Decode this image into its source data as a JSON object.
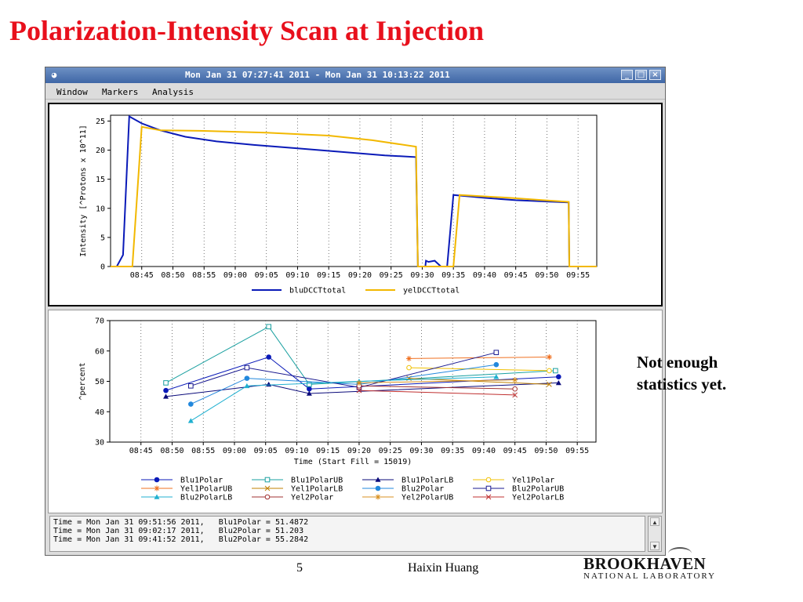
{
  "slide": {
    "title": "Polarization-Intensity Scan at Injection",
    "note_line1": "Not enough",
    "note_line2": "statistics yet.",
    "page_number": "5",
    "author": "Haixin Huang",
    "logo_line1": "BROOKHAVEN",
    "logo_line2": "NATIONAL LABORATORY"
  },
  "window": {
    "title": "Mon Jan 31 07:27:41 2011 - Mon Jan 31 10:13:22 2011",
    "menu": [
      "Window",
      "Markers",
      "Analysis"
    ],
    "status_lines": [
      "Time = Mon Jan 31 09:51:56 2011,   Blu1Polar = 51.4872",
      "Time = Mon Jan 31 09:02:17 2011,   Blu2Polar = 51.203",
      "Time = Mon Jan 31 09:41:52 2011,   Blu2Polar = 55.2842"
    ]
  },
  "chart_data": [
    {
      "type": "line",
      "xlabel": "",
      "ylabel": "Intensity [^Protons x 10^11]",
      "x_range": [
        "08:40",
        "09:58"
      ],
      "ylim": [
        0,
        26
      ],
      "yticks": [
        0,
        5,
        10,
        15,
        20,
        25
      ],
      "xticks": [
        "08:45",
        "08:50",
        "08:55",
        "09:00",
        "09:05",
        "09:10",
        "09:15",
        "09:20",
        "09:25",
        "09:30",
        "09:35",
        "09:40",
        "09:45",
        "09:50",
        "09:55"
      ],
      "grid": "vertical-dotted",
      "legend_position": "bottom",
      "series": [
        {
          "name": "bluDCCTtotal",
          "color": "#0a1ab8",
          "points": [
            [
              "08:40",
              0
            ],
            [
              "08:41",
              0
            ],
            [
              "08:42",
              2
            ],
            [
              "08:43",
              25.8
            ],
            [
              "08:45",
              24.6
            ],
            [
              "08:48",
              23.4
            ],
            [
              "08:52",
              22.3
            ],
            [
              "08:57",
              21.5
            ],
            [
              "09:03",
              20.9
            ],
            [
              "09:10",
              20.3
            ],
            [
              "09:17",
              19.7
            ],
            [
              "09:24",
              19.1
            ],
            [
              "09:29",
              18.8
            ],
            [
              "09:29.3",
              0
            ],
            [
              "09:30.5",
              0
            ],
            [
              "09:30.6",
              1
            ],
            [
              "09:31",
              0.8
            ],
            [
              "09:32",
              1
            ],
            [
              "09:33",
              0
            ],
            [
              "09:34",
              0
            ],
            [
              "09:35",
              12.3
            ],
            [
              "09:40",
              11.8
            ],
            [
              "09:45",
              11.4
            ],
            [
              "09:53.5",
              11
            ],
            [
              "09:53.6",
              0
            ],
            [
              "09:58",
              0
            ]
          ]
        },
        {
          "name": "yelDCCTtotal",
          "color": "#f2b800",
          "points": [
            [
              "08:40",
              0
            ],
            [
              "08:43.5",
              0
            ],
            [
              "08:45",
              24
            ],
            [
              "08:48",
              23.4
            ],
            [
              "08:55",
              23.3
            ],
            [
              "09:05",
              23
            ],
            [
              "09:15",
              22.5
            ],
            [
              "09:22",
              21.7
            ],
            [
              "09:29",
              20.6
            ],
            [
              "09:29.3",
              0
            ],
            [
              "09:35",
              0
            ],
            [
              "09:36",
              12.3
            ],
            [
              "09:44",
              11.8
            ],
            [
              "09:53.5",
              11.1
            ],
            [
              "09:53.6",
              0
            ],
            [
              "09:58",
              0
            ]
          ]
        }
      ]
    },
    {
      "type": "line",
      "xlabel": "Time (Start Fill = 15019)",
      "ylabel": "^percent",
      "x_range": [
        "08:40",
        "09:58"
      ],
      "ylim": [
        30,
        70
      ],
      "yticks": [
        30,
        40,
        50,
        60,
        70
      ],
      "xticks": [
        "08:45",
        "08:50",
        "08:55",
        "09:00",
        "09:05",
        "09:10",
        "09:15",
        "09:20",
        "09:25",
        "09:30",
        "09:35",
        "09:40",
        "09:45",
        "09:50",
        "09:55"
      ],
      "grid": "vertical-dotted",
      "legend_position": "bottom",
      "series": [
        {
          "name": "Blu1Polar",
          "color": "#0a1ab8",
          "marker": "filled-circle",
          "points": [
            [
              "08:49",
              47
            ],
            [
              "09:05.5",
              58
            ],
            [
              "09:12",
              47.5
            ],
            [
              "09:52",
              51.5
            ]
          ]
        },
        {
          "name": "Blu1PolarUB",
          "color": "#1aa0a0",
          "marker": "square",
          "points": [
            [
              "08:49",
              49.5
            ],
            [
              "09:05.5",
              68
            ],
            [
              "09:12",
              49
            ],
            [
              "09:51.5",
              53.5
            ]
          ]
        },
        {
          "name": "Blu1PolarLB",
          "color": "#0a0a7a",
          "marker": "filled-triangle",
          "points": [
            [
              "08:49",
              45
            ],
            [
              "09:05.5",
              49
            ],
            [
              "09:12",
              46
            ],
            [
              "09:52",
              49.5
            ]
          ]
        },
        {
          "name": "Yel1Polar",
          "color": "#f0c000",
          "marker": "circle",
          "points": [
            [
              "09:28",
              54.5
            ],
            [
              "09:50.5",
              53.5
            ]
          ]
        },
        {
          "name": "Yel1PolarUB",
          "color": "#f07020",
          "marker": "star",
          "points": [
            [
              "09:28",
              57.5
            ],
            [
              "09:50.5",
              58
            ]
          ]
        },
        {
          "name": "Yel1PolarLB",
          "color": "#c08000",
          "marker": "x",
          "points": [
            [
              "09:28",
              51
            ],
            [
              "09:50.5",
              49
            ]
          ]
        },
        {
          "name": "Blu2Polar",
          "color": "#2288dd",
          "marker": "filled-circle",
          "points": [
            [
              "08:53",
              42.5
            ],
            [
              "09:02",
              51
            ],
            [
              "09:20",
              49
            ],
            [
              "09:42",
              55.5
            ]
          ]
        },
        {
          "name": "Blu2PolarUB",
          "color": "#1a1a90",
          "marker": "square",
          "points": [
            [
              "08:53",
              48.5
            ],
            [
              "09:02",
              54.5
            ],
            [
              "09:20",
              48
            ],
            [
              "09:42",
              59.5
            ]
          ]
        },
        {
          "name": "Blu2PolarLB",
          "color": "#20b0d0",
          "marker": "filled-triangle",
          "points": [
            [
              "08:53",
              37
            ],
            [
              "09:02",
              48.5
            ],
            [
              "09:20",
              50
            ],
            [
              "09:42",
              51.5
            ]
          ]
        },
        {
          "name": "Yel2Polar",
          "color": "#a03030",
          "marker": "circle",
          "points": [
            [
              "09:20",
              48.5
            ],
            [
              "09:45",
              47.5
            ]
          ]
        },
        {
          "name": "Yel2PolarUB",
          "color": "#d89020",
          "marker": "star",
          "points": [
            [
              "09:20",
              49.5
            ],
            [
              "09:45",
              50.5
            ]
          ]
        },
        {
          "name": "Yel2PolarLB",
          "color": "#c03030",
          "marker": "x",
          "points": [
            [
              "09:20",
              47
            ],
            [
              "09:45",
              45.5
            ]
          ]
        }
      ]
    }
  ]
}
